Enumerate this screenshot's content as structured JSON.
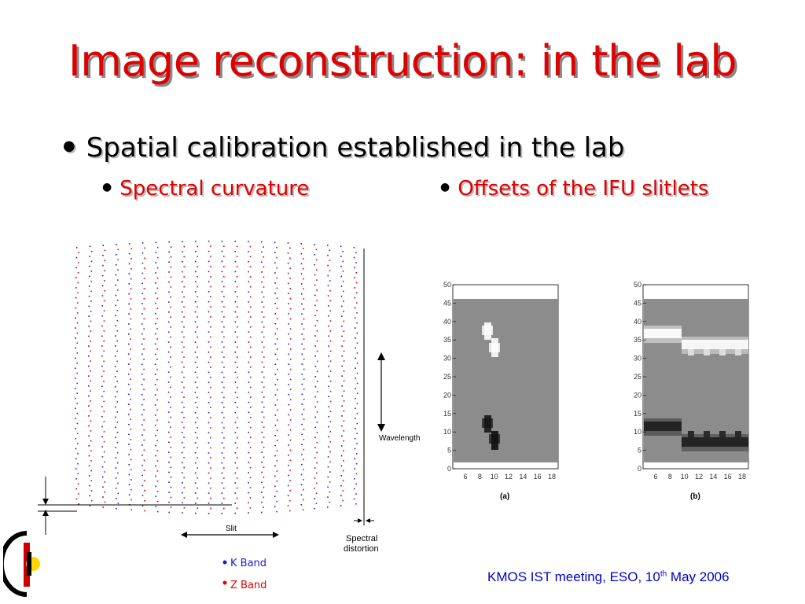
{
  "slide": {
    "title": "Image reconstruction: in the lab",
    "bullet": "Spatial calibration established in the lab",
    "sub_bullets": [
      "Spectral curvature",
      "Offsets of the IFU slitlets"
    ]
  },
  "diagram": {
    "wavelength_label": "Wavelength",
    "slit_label": "Slit",
    "spectral_distortion_label_1": "Spectral",
    "spectral_distortion_label_2": "distortion",
    "legend": [
      {
        "label": "K Band",
        "color": "#1a1ad6"
      },
      {
        "label": "Z Band",
        "color": "#e00000"
      }
    ]
  },
  "panels": [
    {
      "caption": "(a)",
      "y_ticks": [
        "50",
        "45",
        "40",
        "35",
        "30",
        "25",
        "20",
        "15",
        "10",
        "5",
        "0"
      ],
      "x_ticks": [
        "6",
        "8",
        "10",
        "12",
        "14",
        "16",
        "18"
      ]
    },
    {
      "caption": "(b)",
      "y_ticks": [
        "50",
        "45",
        "40",
        "35",
        "30",
        "25",
        "20",
        "15",
        "10",
        "5",
        "0"
      ],
      "x_ticks": [
        "6",
        "8",
        "10",
        "12",
        "14",
        "16",
        "18"
      ]
    }
  ],
  "footer": {
    "text_pre": "KMOS IST meeting, ESO, 10",
    "sup": "th",
    "text_post": " May 2006"
  },
  "colors": {
    "title": "#e00000",
    "k_band": "#1a1ad6",
    "z_band": "#e00000",
    "footer": "#0000cc"
  }
}
